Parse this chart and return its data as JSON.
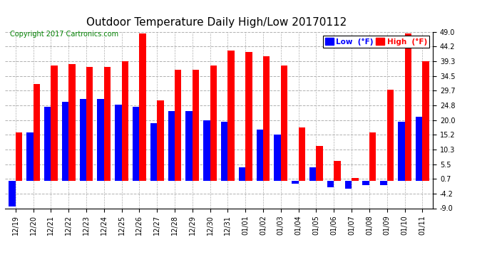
{
  "title": "Outdoor Temperature Daily High/Low 20170112",
  "copyright": "Copyright 2017 Cartronics.com",
  "legend_low": "Low  (°F)",
  "legend_high": "High  (°F)",
  "dates": [
    "12/19",
    "12/20",
    "12/21",
    "12/22",
    "12/23",
    "12/24",
    "12/25",
    "12/26",
    "12/27",
    "12/28",
    "12/29",
    "12/30",
    "12/31",
    "01/01",
    "01/02",
    "01/03",
    "01/04",
    "01/05",
    "01/06",
    "01/07",
    "01/08",
    "01/09",
    "01/10",
    "01/11"
  ],
  "low_values": [
    -8.5,
    16.0,
    24.5,
    26.0,
    27.0,
    27.0,
    25.0,
    24.5,
    19.0,
    23.0,
    23.0,
    20.0,
    19.5,
    4.5,
    17.0,
    15.2,
    -1.0,
    4.5,
    -2.0,
    -2.5,
    -1.5,
    -1.5,
    19.5,
    21.0
  ],
  "high_values": [
    16.0,
    32.0,
    38.0,
    38.5,
    37.5,
    37.5,
    39.5,
    48.5,
    26.5,
    36.5,
    36.5,
    38.0,
    43.0,
    42.5,
    41.0,
    38.0,
    17.5,
    11.5,
    6.5,
    1.0,
    16.0,
    30.0,
    48.5,
    39.5
  ],
  "low_color": "#0000ff",
  "high_color": "#ff0000",
  "bg_color": "#ffffff",
  "plot_bg_color": "#ffffff",
  "grid_color": "#b0b0b0",
  "ylim": [
    -9.0,
    49.0
  ],
  "yticks": [
    -9.0,
    -4.2,
    0.7,
    5.5,
    10.3,
    15.2,
    20.0,
    24.8,
    29.7,
    34.5,
    39.3,
    44.2,
    49.0
  ],
  "title_fontsize": 11,
  "copyright_fontsize": 7,
  "tick_fontsize": 7,
  "legend_fontsize": 7.5,
  "bar_width": 0.38
}
